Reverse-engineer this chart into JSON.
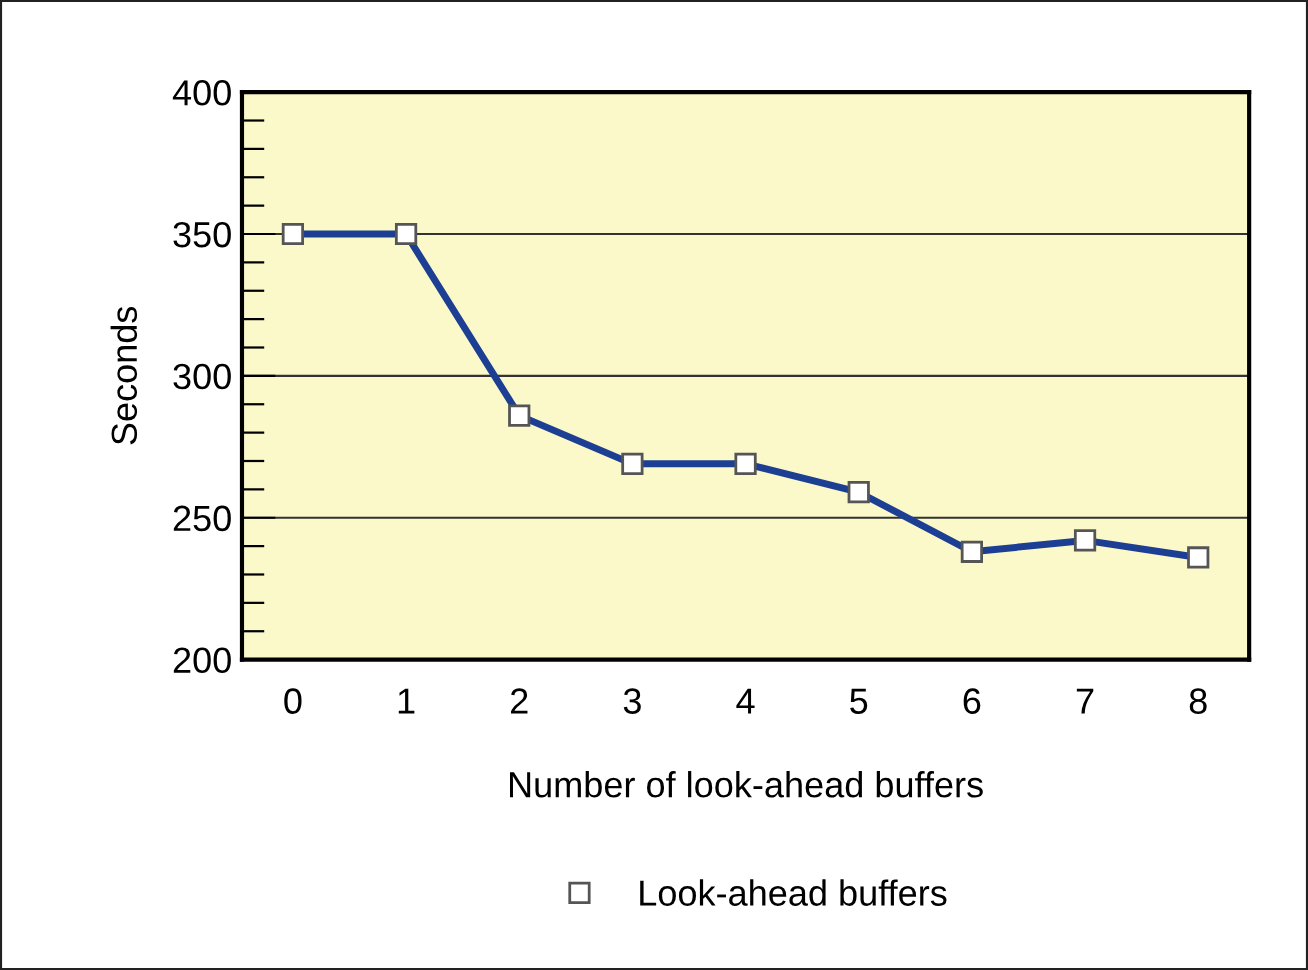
{
  "chart_data": {
    "type": "line",
    "xlabel": "Number of look-ahead buffers",
    "ylabel": "Seconds",
    "categories": [
      "0",
      "1",
      "2",
      "3",
      "4",
      "5",
      "6",
      "7",
      "8"
    ],
    "series": [
      {
        "name": "Look-ahead buffers",
        "color": "#1c3f94",
        "values": [
          350,
          350,
          286,
          269,
          269,
          259,
          238,
          242,
          236
        ]
      }
    ],
    "ylim": [
      200,
      400
    ],
    "yticks": [
      200,
      250,
      300,
      350,
      400
    ],
    "grid": "y",
    "legend": "bottom",
    "marker": "square",
    "line_style": "solid"
  }
}
